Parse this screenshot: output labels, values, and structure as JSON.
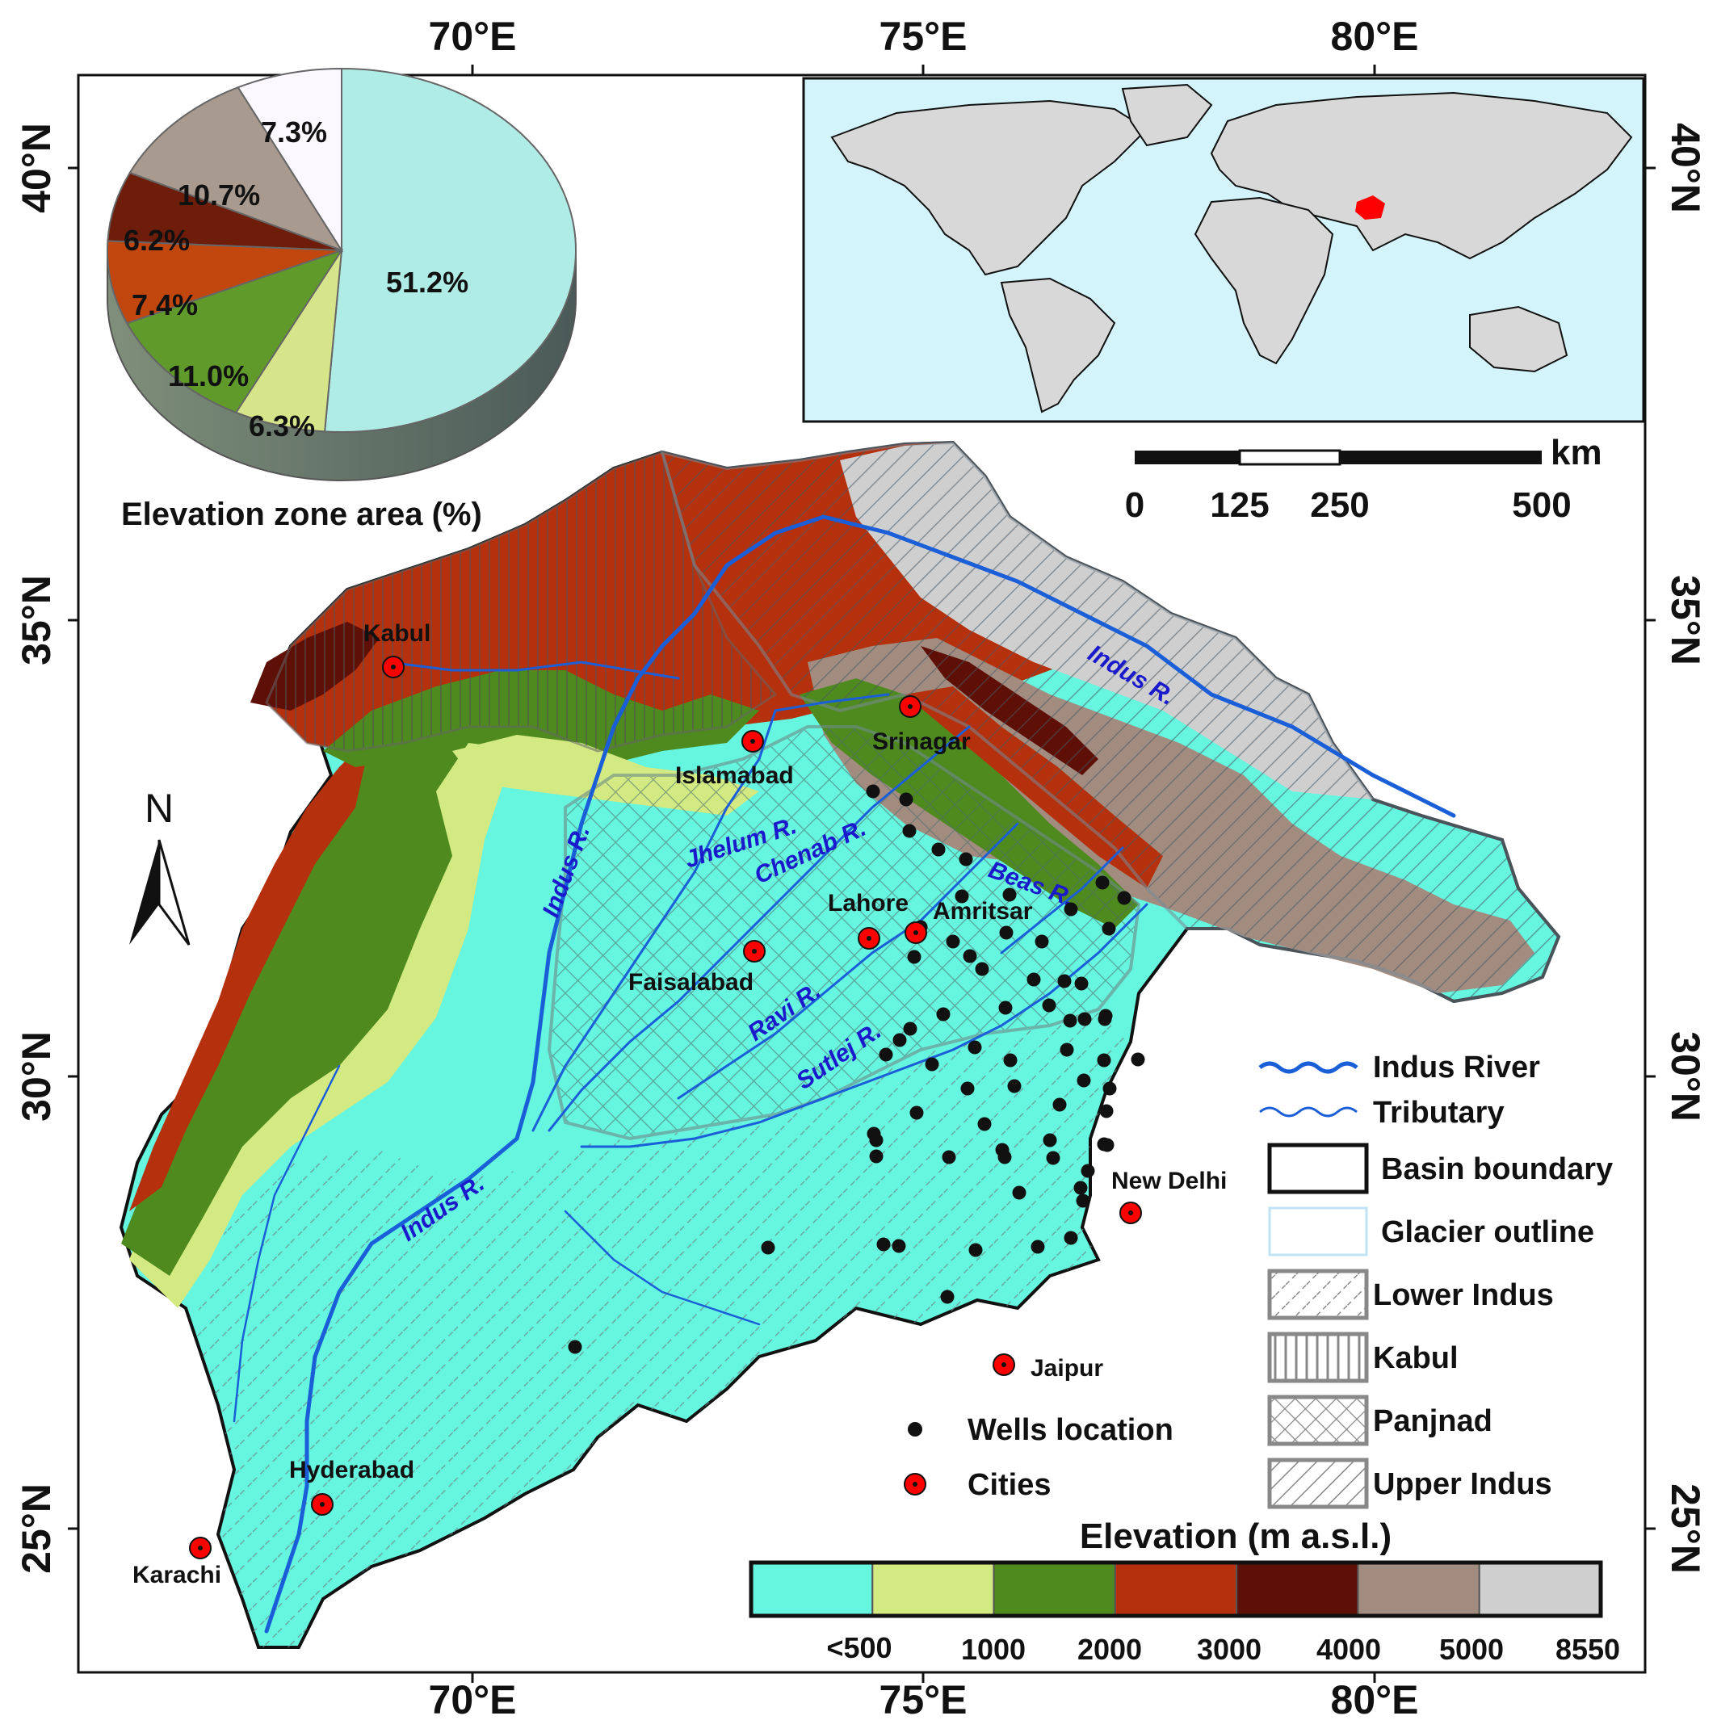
{
  "axes": {
    "lon_top": [
      "70°E",
      "75°E",
      "80°E"
    ],
    "lon_bottom": [
      "70°E",
      "75°E",
      "80°E"
    ],
    "lat_left": [
      "40°N",
      "35°N",
      "30°N",
      "25°N"
    ],
    "lat_right": [
      "40°N",
      "35°N",
      "30°N",
      "25°N"
    ]
  },
  "north_arrow": {
    "label": "N"
  },
  "pie": {
    "title": "Elevation zone area (%)",
    "slices": [
      {
        "label": "51.2%",
        "value": 51.2,
        "color": "#b0ece6"
      },
      {
        "label": "6.3%",
        "value": 6.3,
        "color": "#d6e48a"
      },
      {
        "label": "11.0%",
        "value": 11.0,
        "color": "#5f9a2a"
      },
      {
        "label": "7.4%",
        "value": 7.4,
        "color": "#c2470f"
      },
      {
        "label": "6.2%",
        "value": 6.2,
        "color": "#6e1d0a"
      },
      {
        "label": "10.7%",
        "value": 10.7,
        "color": "#a89a8e"
      },
      {
        "label": "7.3%",
        "value": 7.3,
        "color": "#fbf8ff"
      }
    ]
  },
  "scale_bar": {
    "unit": "km",
    "ticks": [
      "0",
      "125",
      "250",
      "500"
    ]
  },
  "cities": [
    {
      "name": "Kabul"
    },
    {
      "name": "Islamabad"
    },
    {
      "name": "Srinagar"
    },
    {
      "name": "Lahore"
    },
    {
      "name": "Amritsar"
    },
    {
      "name": "Faisalabad"
    },
    {
      "name": "New Delhi"
    },
    {
      "name": "Jaipur"
    },
    {
      "name": "Hyderabad"
    },
    {
      "name": "Karachi"
    }
  ],
  "rivers": [
    {
      "name": "Indus R."
    },
    {
      "name": "Jhelum R."
    },
    {
      "name": "Chenab R."
    },
    {
      "name": "Beas R."
    },
    {
      "name": "Ravi R."
    },
    {
      "name": "Sutlej R."
    },
    {
      "name": "Indus R."
    },
    {
      "name": "Indus R."
    }
  ],
  "legend": {
    "indus_river": "Indus River",
    "tributary": "Tributary",
    "basin_boundary": "Basin boundary",
    "glacier_outline": "Glacier outline",
    "lower_indus": "Lower Indus",
    "kabul": "Kabul",
    "panjnad": "Panjnad",
    "upper_indus": "Upper Indus",
    "wells": "Wells location",
    "cities": "Cities"
  },
  "elevation_bar": {
    "title": "Elevation (m a.s.l.)",
    "ticks": [
      "<500",
      "1000",
      "2000",
      "3000",
      "4000",
      "5000",
      "8550"
    ],
    "colors": [
      "#66f5de",
      "#d3ea82",
      "#4e8a1e",
      "#b5300c",
      "#5e0f06",
      "#a28c80",
      "#cfcfcf"
    ]
  },
  "colors": {
    "city_marker": "#ff0000",
    "river": "#1a5ed8",
    "ocean_inset": "#d4f4fb",
    "land_inset": "#d8d8d8",
    "basin_highlight": "#ff0000"
  }
}
